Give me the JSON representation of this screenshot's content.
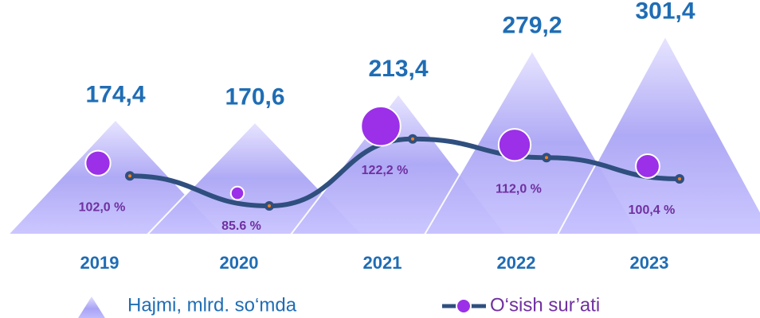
{
  "chart_data": {
    "type": "pyramid_line",
    "categories": [
      "2019",
      "2020",
      "2021",
      "2022",
      "2023"
    ],
    "series": [
      {
        "name": "Hajmi, mlrd. so‘mda",
        "color": "#9d97f0",
        "values": [
          174.4,
          170.6,
          213.4,
          279.2,
          301.4
        ],
        "value_labels": [
          "174,4",
          "170,6",
          "213,4",
          "279,2",
          "301,4"
        ]
      },
      {
        "name": "O‘sish sur’ati",
        "color": "#9b30e8",
        "axis": "y2",
        "values": [
          102.0,
          85.6,
          122.2,
          112.0,
          100.4
        ],
        "value_labels": [
          "102,0 %",
          "85.6 %",
          "122,2 %",
          "112,0 %",
          "100,4 %"
        ]
      }
    ],
    "ylim": [
      0,
      320
    ],
    "y2lim": [
      70,
      185
    ]
  }
}
